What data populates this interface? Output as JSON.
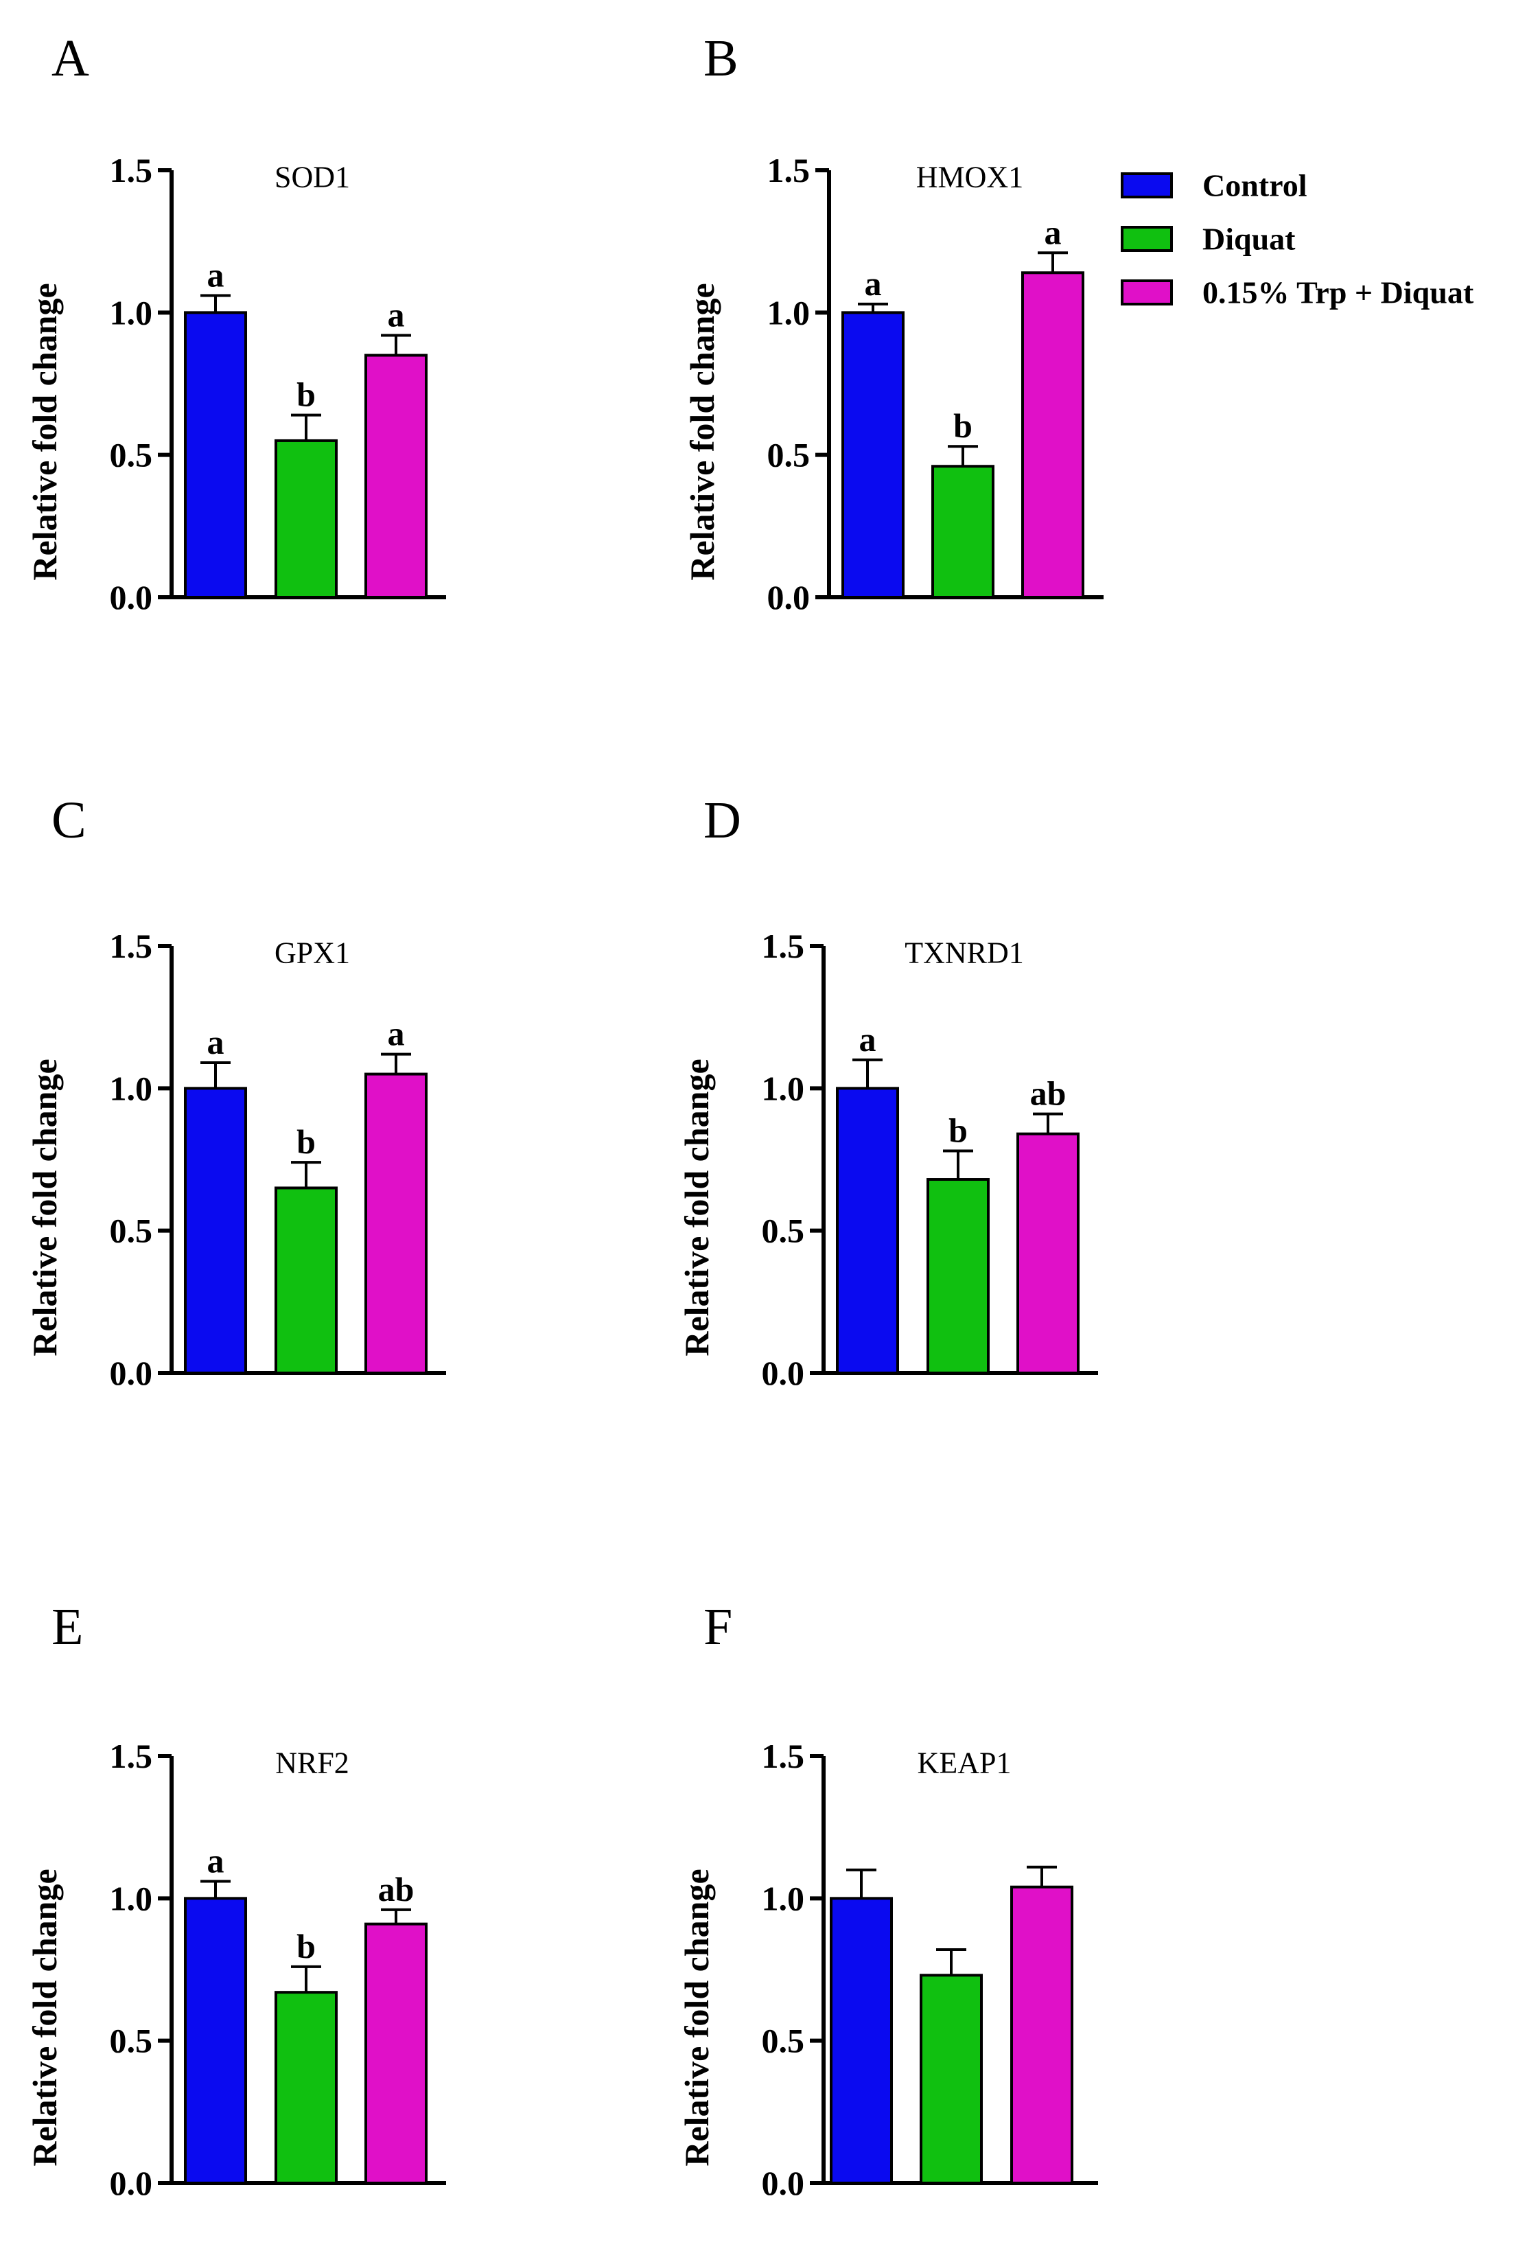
{
  "legend": {
    "entries": [
      {
        "label": "Control",
        "color": "#0a0af0"
      },
      {
        "label": "Diquat",
        "color": "#10c010"
      },
      {
        "label": "0.15% Trp + Diquat",
        "color": "#e010c8"
      }
    ]
  },
  "chart_data": [
    {
      "panel": "A",
      "type": "bar",
      "title": "SOD1",
      "ylabel": "Relative fold change",
      "ylim": [
        0,
        1.5
      ],
      "yticks": [
        "0.0",
        "0.5",
        "1.0",
        "1.5"
      ],
      "categories": [
        "Control",
        "Diquat",
        "0.15% Trp + Diquat"
      ],
      "values": [
        1.0,
        0.55,
        0.85
      ],
      "errors": [
        0.06,
        0.09,
        0.07
      ],
      "labels": [
        "a",
        "b",
        "a"
      ]
    },
    {
      "panel": "B",
      "type": "bar",
      "title": "HMOX1",
      "ylabel": "Relative fold change",
      "ylim": [
        0,
        1.5
      ],
      "yticks": [
        "0.0",
        "0.5",
        "1.0",
        "1.5"
      ],
      "categories": [
        "Control",
        "Diquat",
        "0.15% Trp + Diquat"
      ],
      "values": [
        1.0,
        0.46,
        1.14
      ],
      "errors": [
        0.03,
        0.07,
        0.07
      ],
      "labels": [
        "a",
        "b",
        "a"
      ]
    },
    {
      "panel": "C",
      "type": "bar",
      "title": "GPX1",
      "ylabel": "Relative fold change",
      "ylim": [
        0,
        1.5
      ],
      "yticks": [
        "0.0",
        "0.5",
        "1.0",
        "1.5"
      ],
      "categories": [
        "Control",
        "Diquat",
        "0.15% Trp + Diquat"
      ],
      "values": [
        1.0,
        0.65,
        1.05
      ],
      "errors": [
        0.09,
        0.09,
        0.07
      ],
      "labels": [
        "a",
        "b",
        "a"
      ]
    },
    {
      "panel": "D",
      "type": "bar",
      "title": "TXNRD1",
      "ylabel": "Relative fold change",
      "ylim": [
        0,
        1.5
      ],
      "yticks": [
        "0.0",
        "0.5",
        "1.0",
        "1.5"
      ],
      "categories": [
        "Control",
        "Diquat",
        "0.15% Trp + Diquat"
      ],
      "values": [
        1.0,
        0.68,
        0.84
      ],
      "errors": [
        0.1,
        0.1,
        0.07
      ],
      "labels": [
        "a",
        "b",
        "ab"
      ]
    },
    {
      "panel": "E",
      "type": "bar",
      "title": "NRF2",
      "ylabel": "Relative fold change",
      "ylim": [
        0,
        1.5
      ],
      "yticks": [
        "0.0",
        "0.5",
        "1.0",
        "1.5"
      ],
      "categories": [
        "Control",
        "Diquat",
        "0.15% Trp + Diquat"
      ],
      "values": [
        1.0,
        0.67,
        0.91
      ],
      "errors": [
        0.06,
        0.09,
        0.05
      ],
      "labels": [
        "a",
        "b",
        "ab"
      ]
    },
    {
      "panel": "F",
      "type": "bar",
      "title": "KEAP1",
      "ylabel": "Relative fold change",
      "ylim": [
        0,
        1.5
      ],
      "yticks": [
        "0.0",
        "0.5",
        "1.0",
        "1.5"
      ],
      "categories": [
        "Control",
        "Diquat",
        "0.15% Trp + Diquat"
      ],
      "values": [
        1.0,
        0.73,
        1.04
      ],
      "errors": [
        0.1,
        0.09,
        0.07
      ],
      "labels": [
        "",
        "",
        ""
      ]
    }
  ]
}
